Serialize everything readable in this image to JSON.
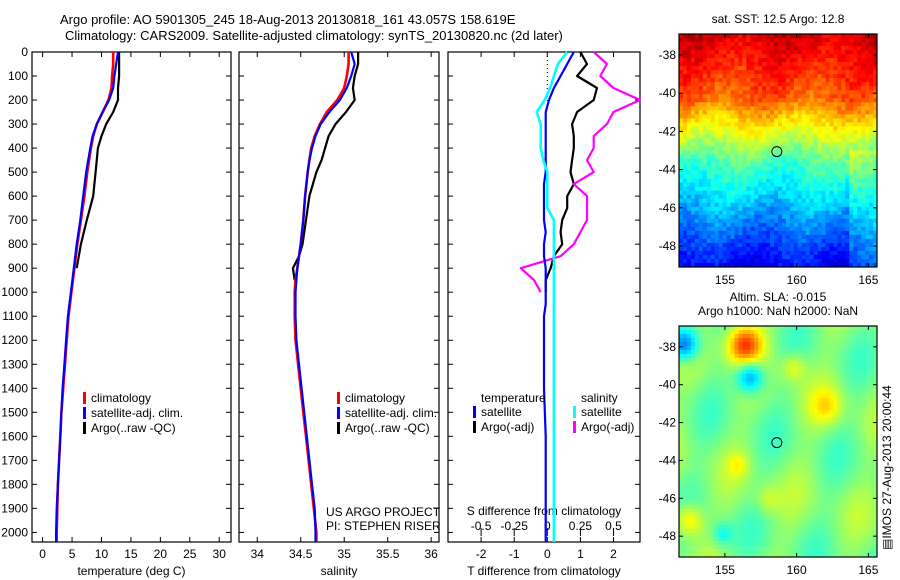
{
  "header": {
    "line1": "Argo profile: AO 5901305_245 18-Aug-2013 20130818_161 43.057S 158.619E",
    "line2": "Climatology: CARS2009. Satellite-adjusted climatology: synTS_20130820.nc (2d later)"
  },
  "colors": {
    "climatology": "#ff0000",
    "satellite_adj": "#0000ff",
    "argo": "#000000",
    "t_satellite": "#0000ff",
    "t_argo": "#000000",
    "s_satellite": "#00ffff",
    "s_argo": "#ff00ff"
  },
  "chart_data": [
    {
      "id": "temperature",
      "type": "line",
      "xlabel": "temperature (deg C)",
      "ylabel": "",
      "xlim": [
        -1.8,
        32
      ],
      "ylim": [
        2040,
        0
      ],
      "xticks": [
        0,
        5,
        10,
        15,
        20,
        25,
        30
      ],
      "yticks": [
        0,
        100,
        200,
        300,
        400,
        500,
        600,
        700,
        800,
        900,
        1000,
        1100,
        1200,
        1300,
        1400,
        1500,
        1600,
        1700,
        1800,
        1900,
        2000
      ],
      "legend": [
        "climatology",
        "satellite-adj. clim.",
        "Argo(..raw -QC)"
      ],
      "depth": [
        0,
        50,
        100,
        150,
        200,
        250,
        300,
        350,
        400,
        500,
        600,
        700,
        800,
        900,
        1000,
        1100,
        1200,
        1300,
        1400,
        1500,
        1600,
        1700,
        1800,
        1900,
        2000,
        2040
      ],
      "series": [
        {
          "name": "climatology",
          "values": [
            12.0,
            12.0,
            11.8,
            11.7,
            11.2,
            10.2,
            9.2,
            8.6,
            8.2,
            7.6,
            7.1,
            6.5,
            5.9,
            5.4,
            4.9,
            4.4,
            4.1,
            3.8,
            3.5,
            3.2,
            3.0,
            2.8,
            2.6,
            2.5,
            2.4,
            2.4
          ]
        },
        {
          "name": "satellite-adj. clim.",
          "values": [
            12.8,
            12.5,
            12.2,
            12.0,
            11.3,
            10.2,
            9.2,
            8.5,
            8.1,
            7.4,
            6.9,
            6.4,
            5.8,
            5.3,
            4.8,
            4.3,
            4.0,
            3.7,
            3.4,
            3.2,
            3.0,
            2.8,
            2.6,
            2.4,
            2.3,
            2.3
          ]
        },
        {
          "name": "Argo(..raw -QC)",
          "values": [
            13.0,
            13.0,
            13.0,
            12.8,
            12.8,
            12.0,
            10.8,
            10.0,
            9.4,
            9.0,
            8.6,
            7.5,
            6.5,
            5.8,
            null,
            null,
            null,
            null,
            null,
            null,
            null,
            null,
            null,
            null,
            null,
            null
          ]
        }
      ]
    },
    {
      "id": "salinity",
      "type": "line",
      "xlabel": "salinity",
      "xlim": [
        33.79,
        36.09
      ],
      "ylim": [
        2040,
        0
      ],
      "xticks": [
        34,
        34.5,
        35,
        35.5,
        36
      ],
      "legend": [
        "climatology",
        "satellite-adj. clim.",
        "Argo(..raw -QC)"
      ],
      "annotation": [
        "US ARGO PROJECT",
        "PI: STEPHEN RISER"
      ],
      "depth": [
        0,
        50,
        100,
        150,
        200,
        250,
        300,
        350,
        400,
        450,
        500,
        600,
        700,
        800,
        850,
        900,
        950,
        1000,
        1100,
        1200,
        1300,
        1400,
        1500,
        1600,
        1700,
        1800,
        1900,
        2000,
        2040
      ],
      "series": [
        {
          "name": "climatology",
          "values": [
            35.05,
            35.05,
            35.03,
            35.0,
            34.92,
            34.8,
            34.72,
            34.66,
            34.62,
            34.6,
            34.58,
            34.55,
            34.53,
            34.5,
            34.48,
            34.46,
            34.44,
            34.43,
            34.43,
            34.44,
            34.47,
            34.5,
            34.53,
            34.56,
            34.59,
            34.62,
            34.65,
            34.68,
            34.68
          ]
        },
        {
          "name": "satellite-adj. clim.",
          "values": [
            35.08,
            35.12,
            35.08,
            35.03,
            34.95,
            34.83,
            34.73,
            34.67,
            34.63,
            34.6,
            34.58,
            34.55,
            34.53,
            34.5,
            34.48,
            34.46,
            34.45,
            34.44,
            34.44,
            34.45,
            34.48,
            34.51,
            34.54,
            34.57,
            34.6,
            34.63,
            34.66,
            34.67,
            34.67
          ]
        },
        {
          "name": "Argo(..raw -QC)",
          "values": [
            35.16,
            35.16,
            35.12,
            35.1,
            35.12,
            35.02,
            34.9,
            34.82,
            34.78,
            34.74,
            34.68,
            34.6,
            34.56,
            34.52,
            34.48,
            34.41,
            34.43,
            null,
            null,
            null,
            null,
            null,
            null,
            null,
            null,
            null,
            null,
            null,
            null
          ]
        }
      ]
    },
    {
      "id": "difference",
      "type": "line",
      "xlabel": "T difference from climatology",
      "x2label": "S difference from climatology",
      "xlim": [
        -3.0,
        2.8
      ],
      "ylim": [
        2040,
        0
      ],
      "xticks": [
        -2,
        -1,
        0,
        1,
        2
      ],
      "x2ticks": [
        -0.5,
        -0.25,
        0,
        0.25,
        0.5
      ],
      "x2_per_x": 0.25,
      "legend_temperature": {
        "title": "temperature",
        "items": [
          "satellite",
          "Argo(-adj)"
        ]
      },
      "legend_salinity": {
        "title": "salinity",
        "items": [
          "satellite",
          "Argo(-adj)"
        ]
      },
      "depth": [
        0,
        50,
        100,
        150,
        200,
        250,
        300,
        350,
        400,
        450,
        500,
        550,
        600,
        650,
        700,
        750,
        800,
        850,
        900,
        950,
        1000,
        1050,
        1100,
        1200,
        1400,
        1600,
        1800,
        2000,
        2040
      ],
      "series": [
        {
          "name": "T satellite",
          "values": [
            0.8,
            0.6,
            0.4,
            0.2,
            0.05,
            -0.05,
            -0.05,
            -0.05,
            -0.05,
            -0.05,
            -0.05,
            -0.1,
            -0.1,
            -0.1,
            -0.1,
            -0.05,
            -0.1,
            -0.1,
            -0.05,
            -0.05,
            -0.05,
            -0.05,
            -0.1,
            -0.1,
            -0.1,
            -0.05,
            -0.05,
            -0.05,
            -0.05
          ]
        },
        {
          "name": "T Argo(-adj)",
          "values": [
            1.0,
            1.2,
            0.9,
            1.5,
            1.4,
            0.9,
            0.75,
            0.8,
            0.8,
            0.75,
            0.7,
            0.8,
            0.6,
            0.6,
            0.45,
            0.4,
            0.45,
            0.2,
            0.1,
            -0.05,
            -0.05,
            null,
            null,
            null,
            null,
            null,
            null,
            null,
            null
          ]
        },
        {
          "name": "S satellite",
          "values": [
            0.15,
            0.08,
            0.05,
            0.02,
            -0.02,
            -0.08,
            -0.05,
            -0.05,
            -0.05,
            -0.03,
            0.0,
            0.0,
            0.0,
            0.0,
            0.05,
            0.05,
            0.05,
            0.05,
            0.05,
            0.05,
            0.05,
            0.05,
            0.05,
            0.05,
            0.05,
            0.05,
            0.05,
            0.05,
            0.05
          ]
        },
        {
          "name": "S Argo(-adj)",
          "values": [
            0.35,
            0.45,
            0.4,
            0.5,
            0.7,
            0.5,
            0.45,
            0.35,
            0.35,
            0.3,
            0.35,
            0.2,
            0.3,
            0.3,
            0.3,
            0.25,
            0.2,
            0.1,
            -0.2,
            -0.1,
            -0.05,
            null,
            null,
            null,
            null,
            null,
            null,
            null,
            null
          ]
        }
      ]
    },
    {
      "id": "sst-map",
      "type": "heatmap",
      "title": "sat. SST: 12.5 Argo: 12.8",
      "xlim": [
        151.8,
        165.6
      ],
      "ylim": [
        -49.1,
        -36.9
      ],
      "xticks": [
        155,
        160,
        165
      ],
      "yticks": [
        -38,
        -40,
        -42,
        -44,
        -46,
        -48
      ],
      "marker": {
        "lon": 158.619,
        "lat": -43.057
      },
      "sat_sst": 12.5,
      "argo_sst": 12.8,
      "colormap": "jet"
    },
    {
      "id": "sla-map",
      "type": "heatmap",
      "title": "Altim. SLA: -0.015",
      "subtitle": "Argo h1000: NaN h2000: NaN",
      "xlim": [
        151.8,
        165.6
      ],
      "ylim": [
        -49.1,
        -36.9
      ],
      "xticks": [
        155,
        160,
        165
      ],
      "yticks": [
        -38,
        -40,
        -42,
        -44,
        -46,
        -48
      ],
      "marker": {
        "lon": 158.619,
        "lat": -43.057
      },
      "sla": -0.015,
      "colormap": "jet"
    }
  ],
  "footer": {
    "credit": "IMOS 27-Aug-2013 20:00:44"
  }
}
